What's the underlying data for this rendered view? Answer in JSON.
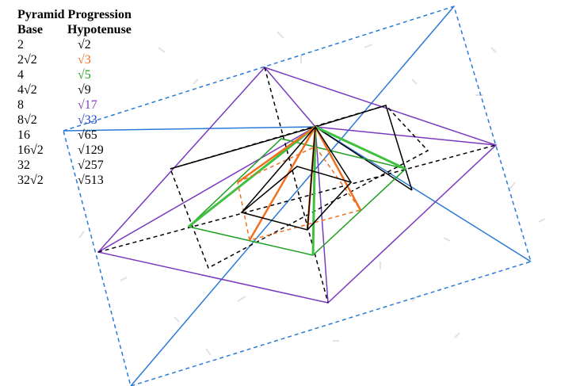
{
  "header": {
    "title": "Pyramid Progression",
    "columns": [
      "Base",
      "Hypotenuse"
    ]
  },
  "table": {
    "rows": [
      [
        "2",
        "√2"
      ],
      [
        "2√2",
        "√3"
      ],
      [
        "4",
        "√5"
      ],
      [
        "4√2",
        "√9"
      ],
      [
        "8",
        "√17"
      ],
      [
        "8√2",
        "√33"
      ],
      [
        "16",
        "√65"
      ],
      [
        "16√2",
        "√129"
      ],
      [
        "32",
        "√257"
      ],
      [
        "32√2",
        "√513"
      ]
    ],
    "hypotenuse_colors": [
      "#000000",
      "#f07020",
      "#20a020",
      "#000000",
      "#8040c0",
      "#2040d0",
      "#000000",
      "#000000",
      "#000000",
      "#000000"
    ]
  }
}
